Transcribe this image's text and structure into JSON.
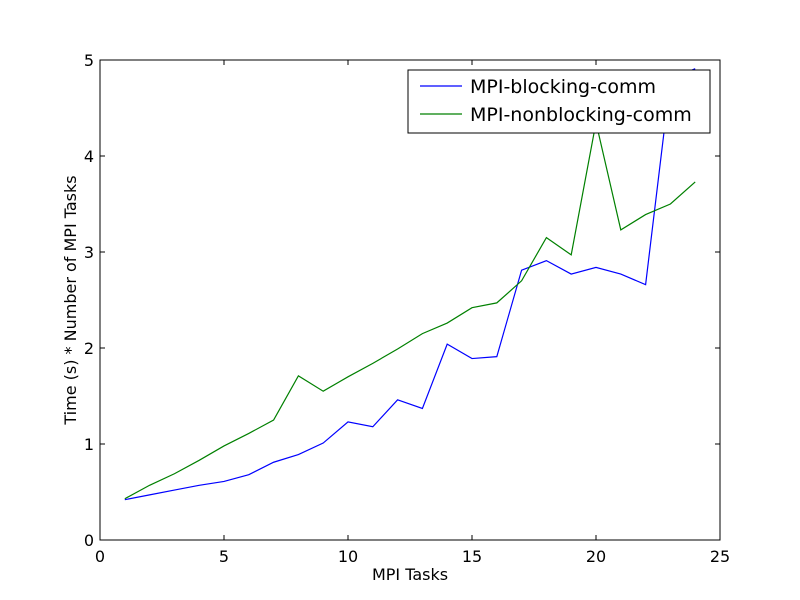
{
  "chart_data": {
    "type": "line",
    "title": "",
    "xlabel": "MPI Tasks",
    "ylabel": "Time (s) * Number of MPI Tasks",
    "xlim": [
      0,
      25
    ],
    "ylim": [
      0,
      5
    ],
    "xticks": [
      0,
      5,
      10,
      15,
      20,
      25
    ],
    "yticks": [
      0,
      1,
      2,
      3,
      4,
      5
    ],
    "grid": false,
    "legend_position": "top-right",
    "x": [
      1,
      2,
      3,
      4,
      5,
      6,
      7,
      8,
      9,
      10,
      11,
      12,
      13,
      14,
      15,
      16,
      17,
      18,
      19,
      20,
      21,
      22,
      23,
      24
    ],
    "series": [
      {
        "name": "MPI-blocking-comm",
        "color": "#0000ff",
        "values": [
          0.42,
          0.47,
          0.52,
          0.57,
          0.61,
          0.68,
          0.81,
          0.89,
          1.01,
          1.23,
          1.18,
          1.46,
          1.37,
          2.04,
          1.89,
          1.91,
          2.81,
          2.91,
          2.77,
          2.84,
          2.77,
          2.66,
          4.8,
          4.91
        ]
      },
      {
        "name": "MPI-nonblocking-comm",
        "color": "#008000",
        "values": [
          0.43,
          0.57,
          0.69,
          0.83,
          0.98,
          1.11,
          1.25,
          1.71,
          1.55,
          1.7,
          1.84,
          1.99,
          2.15,
          2.26,
          2.42,
          2.47,
          2.7,
          3.15,
          2.97,
          4.35,
          3.23,
          3.39,
          3.5,
          3.73
        ]
      }
    ]
  }
}
